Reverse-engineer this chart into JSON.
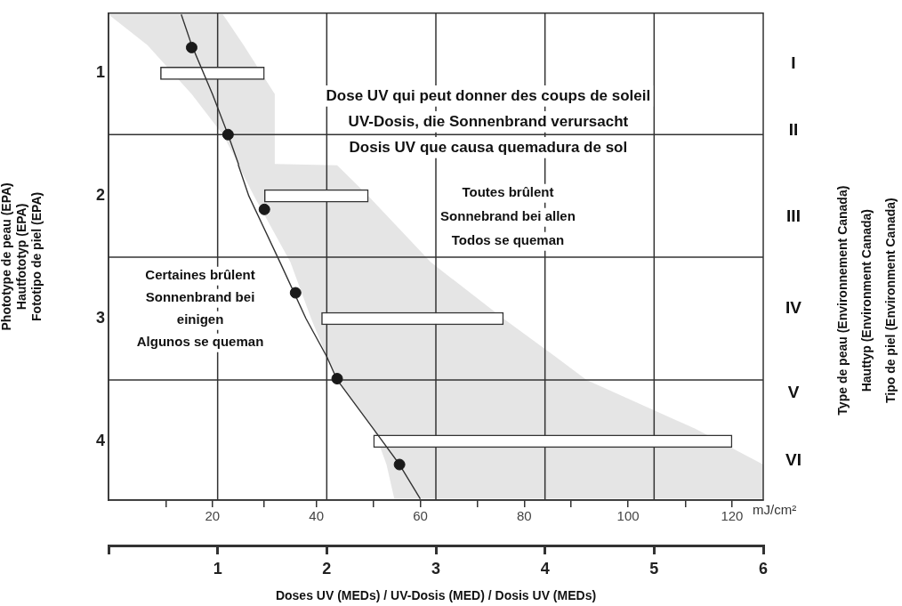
{
  "chart_data": {
    "type": "bar",
    "orientation": "horizontal",
    "xlabel": "mJ/cm²",
    "x2label": "Doses UV (MEDs) / UV-Dosis (MED) / Dosis UV (MEDs)",
    "ylabel": "Phototype de peau (EPA)\nHautfototyp (EPA)\nFototipo de piel (EPA)",
    "xlim": [
      0,
      126
    ],
    "xticks": [
      {
        "value": 11,
        "label": null
      },
      20,
      {
        "value": 30,
        "label": null
      },
      40,
      {
        "value": 51,
        "label": null
      },
      60,
      {
        "value": 71,
        "label": null
      },
      80,
      {
        "value": 89,
        "label": null
      },
      100,
      {
        "value": 111,
        "label": null
      },
      120
    ],
    "x2lim": [
      0,
      6
    ],
    "x2ticks": [
      {
        "value": 0,
        "label": null
      },
      1,
      2,
      3,
      4,
      5,
      6
    ],
    "ylim": [
      4.48,
      0.51
    ],
    "yticks": [
      1,
      2,
      3,
      4
    ],
    "grid": false,
    "ref_lines": [
      {
        "axis": "x",
        "value": 21,
        "color": "#333333"
      },
      {
        "axis": "x",
        "value": 42,
        "color": "#333333"
      },
      {
        "axis": "x",
        "value": 63,
        "color": "#333333"
      },
      {
        "axis": "x",
        "value": 84,
        "color": "#333333"
      },
      {
        "axis": "x",
        "value": 105,
        "color": "#333333"
      },
      {
        "axis": "y",
        "value": 1.5,
        "color": "#333333"
      },
      {
        "axis": "y",
        "value": 2.5,
        "color": "#333333"
      },
      {
        "axis": "y",
        "value": 3.5,
        "color": "#333333"
      }
    ],
    "series": [
      {
        "color": "#ffffff",
        "x": [
          1,
          2,
          3,
          4
        ],
        "base": [
          10,
          30,
          41,
          51
        ],
        "values": [
          20,
          20,
          35,
          69
        ]
      },
      {
        "type": "line",
        "color": "#333333",
        "marker": "none",
        "x": [
          0.52,
          0.77,
          1.17,
          1.5,
          1.74,
          1.75,
          2.0,
          2.54,
          3.0,
          3.31,
          3.5,
          3.9,
          4.19,
          4.47
        ],
        "values": [
          14,
          16,
          20,
          23,
          25,
          25,
          27,
          33,
          38,
          42,
          44,
          51,
          56,
          60
        ],
        "lower": [
          0,
          7.5,
          16,
          22,
          25,
          25,
          28,
          35,
          39,
          42,
          44,
          51,
          53.5,
          55
        ],
        "upper": [
          22,
          26,
          32,
          32,
          32,
          44,
          50,
          62,
          76,
          86,
          92,
          113,
          126,
          126
        ]
      },
      {
        "type": "scatter",
        "color": "#1a1a1a",
        "marker": "circle",
        "x": [
          0.79,
          1.5,
          2.11,
          2.79,
          3.49,
          4.19
        ],
        "values": [
          16,
          23,
          30,
          36,
          44,
          56
        ]
      }
    ],
    "annotations": [
      "I",
      "II",
      "III",
      "IV",
      "V",
      "VI",
      "Dose UV qui peut donner des coups de soleil\nUV-Dosis, die Sonnenbrand verursacht\nDosis UV que causa quemadura de sol",
      "Toutes brûlent\nSonnebrand bei allen\nTodos se queman",
      "Certaines brûlent\nSonnenbrand bei\neinigen\nAlgunos se queman",
      "Type de peau (Environnement Canada)\nHauttyp (Environment Canada)\nTipo de piel (Environment Canada)"
    ]
  }
}
